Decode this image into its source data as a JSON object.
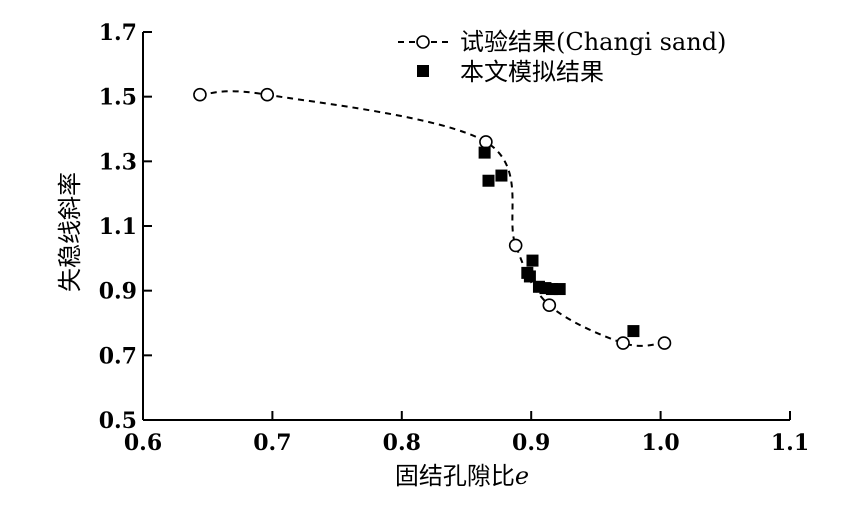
{
  "chart_data": {
    "type": "scatter",
    "title": "",
    "xlabel": "固结孔隙比",
    "xlabel_italic_suffix": "e",
    "ylabel": "失稳线斜率",
    "xlim": [
      0.6,
      1.1
    ],
    "ylim": [
      0.5,
      1.7
    ],
    "xticks": [
      "0.6",
      "0.7",
      "0.8",
      "0.9",
      "1.0",
      "1.1"
    ],
    "yticks": [
      "0.5",
      "0.7",
      "0.9",
      "1.1",
      "1.3",
      "1.5",
      "1.7"
    ],
    "grid": false,
    "legend_position": "top-right",
    "series": [
      {
        "name": "试验结果(Changi sand)",
        "marker": "open-circle",
        "line": "dashed",
        "points": [
          {
            "x": 0.644,
            "y": 1.506
          },
          {
            "x": 0.696,
            "y": 1.506
          },
          {
            "x": 0.865,
            "y": 1.36
          },
          {
            "x": 0.888,
            "y": 1.04
          },
          {
            "x": 0.914,
            "y": 0.855
          },
          {
            "x": 0.971,
            "y": 0.738
          },
          {
            "x": 1.003,
            "y": 0.738
          }
        ]
      },
      {
        "name": "本文模拟结果",
        "marker": "filled-square",
        "points": [
          {
            "x": 0.864,
            "y": 1.327
          },
          {
            "x": 0.867,
            "y": 1.24
          },
          {
            "x": 0.877,
            "y": 1.256
          },
          {
            "x": 0.897,
            "y": 0.955
          },
          {
            "x": 0.899,
            "y": 0.944
          },
          {
            "x": 0.901,
            "y": 0.993
          },
          {
            "x": 0.906,
            "y": 0.912
          },
          {
            "x": 0.911,
            "y": 0.908
          },
          {
            "x": 0.916,
            "y": 0.905
          },
          {
            "x": 0.922,
            "y": 0.905
          },
          {
            "x": 0.979,
            "y": 0.775
          }
        ]
      }
    ],
    "colors": {
      "axis": "#000000",
      "marker": "#000000",
      "marker_fill_open": "#ffffff"
    }
  }
}
